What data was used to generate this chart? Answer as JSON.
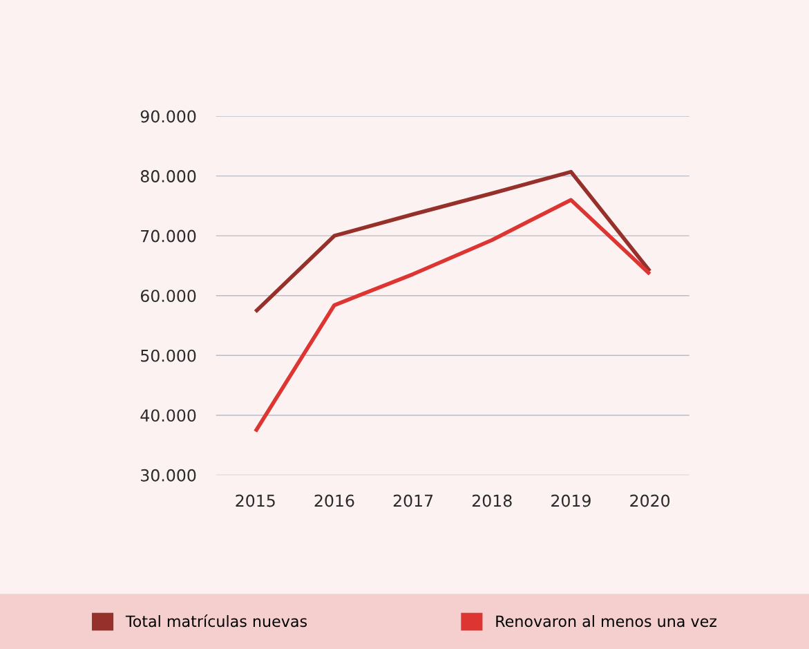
{
  "chart_data": {
    "type": "line",
    "categories": [
      "2015",
      "2016",
      "2017",
      "2018",
      "2019",
      "2020"
    ],
    "series": [
      {
        "name": "Total matrículas nuevas",
        "color": "#96302a",
        "values": [
          57300,
          70000,
          73600,
          77100,
          80700,
          64100
        ]
      },
      {
        "name": "Renovaron al menos una vez",
        "color": "#dc3532",
        "values": [
          37300,
          58400,
          63600,
          69300,
          76000,
          63600
        ]
      }
    ],
    "ylim": [
      30000,
      90000
    ],
    "yticks": [
      {
        "value": 30000,
        "label": "30.000"
      },
      {
        "value": 40000,
        "label": "40.000"
      },
      {
        "value": 50000,
        "label": "50.000"
      },
      {
        "value": 60000,
        "label": "60.000"
      },
      {
        "value": 70000,
        "label": "70.000"
      },
      {
        "value": 80000,
        "label": "80.000"
      },
      {
        "value": 90000,
        "label": "90.000"
      }
    ],
    "grid": "y",
    "legend": "bottom",
    "marker": "none",
    "line_style": "solid"
  }
}
